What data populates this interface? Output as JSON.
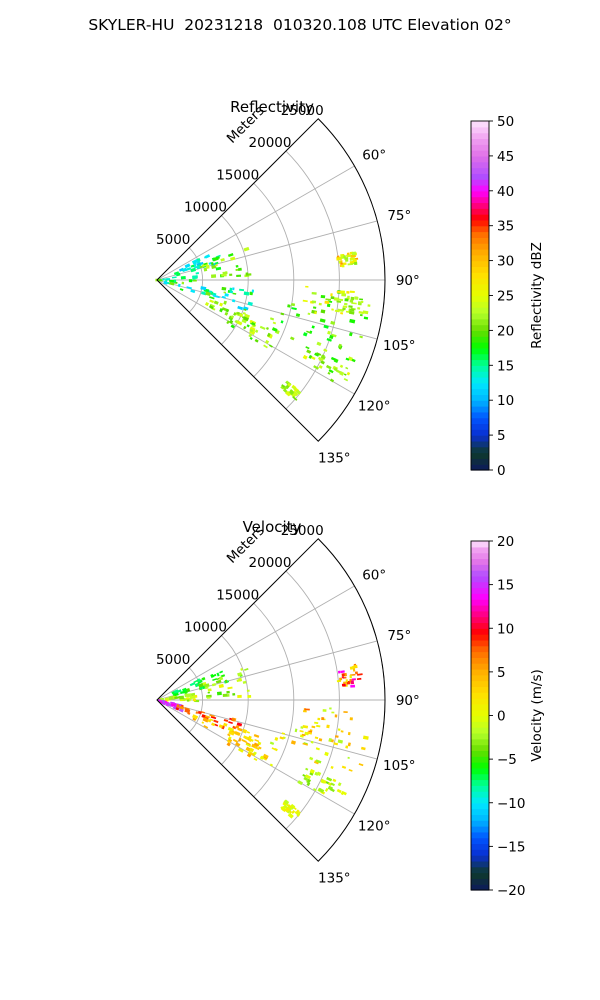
{
  "figure": {
    "suptitle": "SKYLER-HU  20231218  010320.108 UTC Elevation 02°"
  },
  "colors": {
    "grid": "#b0b0b0",
    "axis": "#000000",
    "background": "#ffffff"
  },
  "chart_data": [
    {
      "type": "heatmap",
      "projection": "polar-sector",
      "title": "Reflectivity",
      "range_axis_label": "Meters",
      "range_ticks": [
        5000,
        10000,
        15000,
        20000,
        25000
      ],
      "range_tick_labels": [
        "5000",
        "10000",
        "15000",
        "20000",
        "25000"
      ],
      "range_lim": [
        0,
        25000
      ],
      "azimuth_lim_deg": [
        45,
        135
      ],
      "azimuth_ticks_deg": [
        60,
        75,
        90,
        105,
        120,
        135
      ],
      "azimuth_tick_labels": [
        "60°",
        "75°",
        "90°",
        "105°",
        "120°",
        "135°"
      ],
      "grid": true,
      "colorbar": {
        "label": "Reflectivity dBZ",
        "lim": [
          0,
          50
        ],
        "ticks": [
          0,
          5,
          10,
          15,
          20,
          25,
          30,
          35,
          40,
          45,
          50
        ],
        "tick_labels": [
          "0",
          "5",
          "10",
          "15",
          "20",
          "25",
          "30",
          "35",
          "40",
          "45",
          "50"
        ],
        "stops": [
          {
            "v": 0,
            "color": "#0d1a5c"
          },
          {
            "v": 2.5,
            "color": "#0e3a2a"
          },
          {
            "v": 5,
            "color": "#0a2fd0"
          },
          {
            "v": 7.5,
            "color": "#0055ff"
          },
          {
            "v": 10,
            "color": "#00b4ff"
          },
          {
            "v": 12.5,
            "color": "#00e8ff"
          },
          {
            "v": 15,
            "color": "#00ff9a"
          },
          {
            "v": 17.5,
            "color": "#00ff00"
          },
          {
            "v": 20,
            "color": "#66dd00"
          },
          {
            "v": 22.5,
            "color": "#b4ff2a"
          },
          {
            "v": 25,
            "color": "#e6ff00"
          },
          {
            "v": 28,
            "color": "#ffe000"
          },
          {
            "v": 31,
            "color": "#ffb000"
          },
          {
            "v": 34,
            "color": "#ff6a00"
          },
          {
            "v": 36,
            "color": "#ff0000"
          },
          {
            "v": 38,
            "color": "#ff0080"
          },
          {
            "v": 40,
            "color": "#ff00ff"
          },
          {
            "v": 42,
            "color": "#b04dff"
          },
          {
            "v": 45,
            "color": "#e070e8"
          },
          {
            "v": 47.5,
            "color": "#f0a0f0"
          },
          {
            "v": 50,
            "color": "#ffe6ff"
          }
        ]
      },
      "echo_regions": [
        {
          "az": [
            64,
            76
          ],
          "r": [
            2000,
            8000
          ],
          "v": [
            10,
            17
          ]
        },
        {
          "az": [
            70,
            88
          ],
          "r": [
            5000,
            10500
          ],
          "v": [
            17,
            24
          ]
        },
        {
          "az": [
            80,
            112
          ],
          "r": [
            0,
            4500
          ],
          "v": [
            12,
            22
          ]
        },
        {
          "az": [
            96,
            113
          ],
          "r": [
            5000,
            11000
          ],
          "v": [
            11,
            22
          ]
        },
        {
          "az": [
            108,
            118
          ],
          "r": [
            6000,
            14000
          ],
          "v": [
            18,
            25
          ]
        },
        {
          "az": [
            112,
            122
          ],
          "r": [
            9000,
            15000
          ],
          "v": [
            18,
            25
          ]
        },
        {
          "az": [
            100,
            114
          ],
          "r": [
            13000,
            24000
          ],
          "v": [
            17,
            24
          ]
        },
        {
          "az": [
            92,
            104
          ],
          "r": [
            16000,
            21500
          ],
          "v": [
            18,
            28
          ]
        },
        {
          "az": [
            114,
            120
          ],
          "r": [
            18000,
            23500
          ],
          "v": [
            18,
            26
          ]
        },
        {
          "az": [
            128,
            131
          ],
          "r": [
            18000,
            20000
          ],
          "v": [
            20,
            26
          ]
        },
        {
          "az": [
            82,
            86
          ],
          "r": [
            20000,
            22000
          ],
          "v": [
            21,
            33
          ]
        },
        {
          "az": [
            95,
            100
          ],
          "r": [
            20000,
            23500
          ],
          "v": [
            19,
            24
          ]
        }
      ]
    },
    {
      "type": "heatmap",
      "projection": "polar-sector",
      "title": "Velocity",
      "range_axis_label": "Meters",
      "range_ticks": [
        5000,
        10000,
        15000,
        20000,
        25000
      ],
      "range_tick_labels": [
        "5000",
        "10000",
        "15000",
        "20000",
        "25000"
      ],
      "range_lim": [
        0,
        25000
      ],
      "azimuth_lim_deg": [
        45,
        135
      ],
      "azimuth_ticks_deg": [
        60,
        75,
        90,
        105,
        120,
        135
      ],
      "azimuth_tick_labels": [
        "60°",
        "75°",
        "90°",
        "105°",
        "120°",
        "135°"
      ],
      "grid": true,
      "colorbar": {
        "label": "Velocity (m/s)",
        "lim": [
          -20,
          20
        ],
        "ticks": [
          -20,
          -15,
          -10,
          -5,
          0,
          5,
          10,
          15,
          20
        ],
        "tick_labels": [
          "−20",
          "−15",
          "−10",
          "−5",
          "0",
          "5",
          "10",
          "15",
          "20"
        ],
        "stops": [
          {
            "v": -20,
            "color": "#0d1a5c"
          },
          {
            "v": -18,
            "color": "#0e3a2a"
          },
          {
            "v": -16,
            "color": "#0a2fd0"
          },
          {
            "v": -14,
            "color": "#0055ff"
          },
          {
            "v": -12,
            "color": "#00b4ff"
          },
          {
            "v": -10,
            "color": "#00e8ff"
          },
          {
            "v": -8,
            "color": "#00ff9a"
          },
          {
            "v": -6,
            "color": "#00ff00"
          },
          {
            "v": -4,
            "color": "#66dd00"
          },
          {
            "v": -2,
            "color": "#b4ff2a"
          },
          {
            "v": 0,
            "color": "#e6ff00"
          },
          {
            "v": 2.5,
            "color": "#ffe000"
          },
          {
            "v": 5,
            "color": "#ffb000"
          },
          {
            "v": 7.5,
            "color": "#ff6a00"
          },
          {
            "v": 9.5,
            "color": "#ff0000"
          },
          {
            "v": 11.5,
            "color": "#ff0080"
          },
          {
            "v": 13.5,
            "color": "#ff00ff"
          },
          {
            "v": 16,
            "color": "#b04dff"
          },
          {
            "v": 17.5,
            "color": "#e070e8"
          },
          {
            "v": 19,
            "color": "#f0a0f0"
          },
          {
            "v": 20,
            "color": "#ffe6ff"
          }
        ]
      },
      "echo_regions": [
        {
          "az": [
            64,
            76
          ],
          "r": [
            2000,
            8000
          ],
          "v": [
            -8,
            -4
          ]
        },
        {
          "az": [
            70,
            88
          ],
          "r": [
            5000,
            10500
          ],
          "v": [
            -5,
            1
          ]
        },
        {
          "az": [
            80,
            92
          ],
          "r": [
            0,
            4500
          ],
          "v": [
            -4,
            2
          ]
        },
        {
          "az": [
            100,
            118
          ],
          "r": [
            0,
            3000
          ],
          "v": [
            13,
            17
          ]
        },
        {
          "az": [
            104,
            114
          ],
          "r": [
            2000,
            10000
          ],
          "v": [
            5,
            10
          ]
        },
        {
          "az": [
            108,
            120
          ],
          "r": [
            4000,
            12000
          ],
          "v": [
            0,
            6
          ]
        },
        {
          "az": [
            112,
            122
          ],
          "r": [
            9000,
            15000
          ],
          "v": [
            -1,
            6
          ]
        },
        {
          "az": [
            100,
            114
          ],
          "r": [
            13000,
            24000
          ],
          "v": [
            -3,
            5
          ]
        },
        {
          "az": [
            92,
            104
          ],
          "r": [
            16000,
            21500
          ],
          "v": [
            -2,
            8
          ]
        },
        {
          "az": [
            114,
            120
          ],
          "r": [
            18000,
            23500
          ],
          "v": [
            -4,
            1
          ]
        },
        {
          "az": [
            128,
            131
          ],
          "r": [
            18000,
            20000
          ],
          "v": [
            -2,
            2
          ]
        },
        {
          "az": [
            80,
            86
          ],
          "r": [
            20000,
            22500
          ],
          "v": [
            0,
            14
          ]
        }
      ]
    }
  ]
}
